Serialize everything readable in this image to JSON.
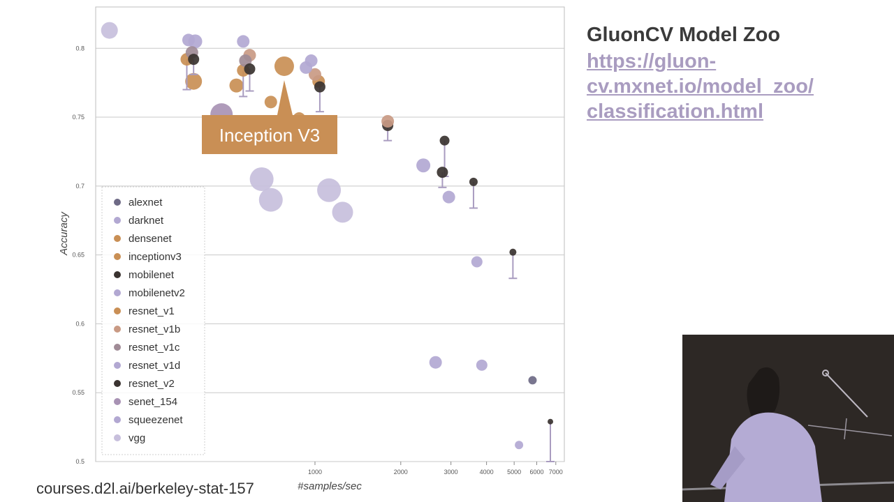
{
  "slide": {
    "title": "GluonCV Model Zoo",
    "link_lines": [
      "https://gluon-",
      "cv.mxnet.io/model_zoo/",
      "classification.html"
    ],
    "footer": "courses.d2l.ai/berkeley-stat-157"
  },
  "chart_data": {
    "type": "scatter",
    "xlabel": "#samples/sec",
    "ylabel": "Accuracy",
    "x_scale": "log",
    "xlim": [
      170,
      7500
    ],
    "ylim": [
      0.5,
      0.83
    ],
    "x_ticks": [
      1000,
      2000,
      3000,
      4000,
      5000,
      6000,
      7000
    ],
    "y_ticks": [
      0.5,
      0.55,
      0.6,
      0.65,
      0.7,
      0.75,
      0.8
    ],
    "y_tick_labels": [
      "0.5",
      "0.55",
      "0.6",
      "0.65",
      "0.7",
      "0.75",
      "0.8"
    ],
    "grid": true,
    "legend_placement": "bottom-left",
    "callout": {
      "label": "Inception V3",
      "model": "inceptionv3",
      "x": 780,
      "y": 0.787
    },
    "series": [
      {
        "name": "alexnet",
        "color": "#6e6a86",
        "points": [
          {
            "x": 5800,
            "y": 0.559,
            "size": 6
          }
        ]
      },
      {
        "name": "darknet",
        "color": "#b2a8d2",
        "points": [
          {
            "x": 380,
            "y": 0.805,
            "size": 10
          }
        ]
      },
      {
        "name": "densenet",
        "color": "#c98f55",
        "points": [
          {
            "x": 375,
            "y": 0.776,
            "size": 12
          },
          {
            "x": 530,
            "y": 0.773,
            "size": 10
          },
          {
            "x": 700,
            "y": 0.761,
            "size": 9
          },
          {
            "x": 880,
            "y": 0.749,
            "size": 9
          }
        ]
      },
      {
        "name": "inceptionv3",
        "color": "#c98f55",
        "points": [
          {
            "x": 780,
            "y": 0.787,
            "size": 14
          }
        ]
      },
      {
        "name": "mobilenet",
        "color": "#3a3330",
        "points": [
          {
            "x": 1800,
            "y": 0.744,
            "size": 8,
            "err": 0.011
          },
          {
            "x": 2850,
            "y": 0.733,
            "size": 7,
            "err": 0.026
          },
          {
            "x": 3600,
            "y": 0.703,
            "size": 6,
            "err": 0.019
          },
          {
            "x": 4950,
            "y": 0.652,
            "size": 5,
            "err": 0.019
          },
          {
            "x": 6700,
            "y": 0.529,
            "size": 4,
            "err": 0.029
          }
        ]
      },
      {
        "name": "mobilenetv2",
        "color": "#b2a8d2",
        "points": [
          {
            "x": 2400,
            "y": 0.715,
            "size": 10
          },
          {
            "x": 2950,
            "y": 0.692,
            "size": 9
          },
          {
            "x": 3700,
            "y": 0.645,
            "size": 8
          },
          {
            "x": 5200,
            "y": 0.512,
            "size": 6
          }
        ]
      },
      {
        "name": "resnet_v1",
        "color": "#c98f55",
        "points": [
          {
            "x": 355,
            "y": 0.792,
            "size": 9,
            "err": 0.022
          },
          {
            "x": 560,
            "y": 0.784,
            "size": 9,
            "err": 0.019
          },
          {
            "x": 1030,
            "y": 0.776,
            "size": 9
          }
        ]
      },
      {
        "name": "resnet_v1b",
        "color": "#c99a84",
        "points": [
          {
            "x": 590,
            "y": 0.795,
            "size": 9
          },
          {
            "x": 1000,
            "y": 0.781,
            "size": 9
          },
          {
            "x": 1800,
            "y": 0.747,
            "size": 9
          }
        ]
      },
      {
        "name": "resnet_v1c",
        "color": "#a08b96",
        "points": [
          {
            "x": 370,
            "y": 0.797,
            "size": 9
          },
          {
            "x": 570,
            "y": 0.791,
            "size": 9
          }
        ]
      },
      {
        "name": "resnet_v1d",
        "color": "#b2a8d2",
        "points": [
          {
            "x": 360,
            "y": 0.806,
            "size": 9
          },
          {
            "x": 560,
            "y": 0.805,
            "size": 9
          },
          {
            "x": 970,
            "y": 0.791,
            "size": 9
          },
          {
            "x": 930,
            "y": 0.786,
            "size": 9
          }
        ]
      },
      {
        "name": "resnet_v2",
        "color": "#3a3330",
        "points": [
          {
            "x": 375,
            "y": 0.792,
            "size": 8,
            "err": 0.011
          },
          {
            "x": 590,
            "y": 0.785,
            "size": 8,
            "err": 0.016
          },
          {
            "x": 1040,
            "y": 0.772,
            "size": 8,
            "err": 0.018
          },
          {
            "x": 2800,
            "y": 0.71,
            "size": 8,
            "err": 0.011
          }
        ]
      },
      {
        "name": "senet_154",
        "color": "#a892b4",
        "points": [
          {
            "x": 470,
            "y": 0.752,
            "size": 16
          }
        ]
      },
      {
        "name": "squeezenet",
        "color": "#b2a8d2",
        "points": [
          {
            "x": 2650,
            "y": 0.572,
            "size": 9
          },
          {
            "x": 3850,
            "y": 0.57,
            "size": 8
          }
        ]
      },
      {
        "name": "vgg",
        "color": "#c7bfdc",
        "points": [
          {
            "x": 190,
            "y": 0.813,
            "size": 12
          },
          {
            "x": 650,
            "y": 0.705,
            "size": 17
          },
          {
            "x": 700,
            "y": 0.69,
            "size": 17
          },
          {
            "x": 1120,
            "y": 0.697,
            "size": 17
          },
          {
            "x": 1250,
            "y": 0.681,
            "size": 15
          }
        ]
      }
    ]
  }
}
